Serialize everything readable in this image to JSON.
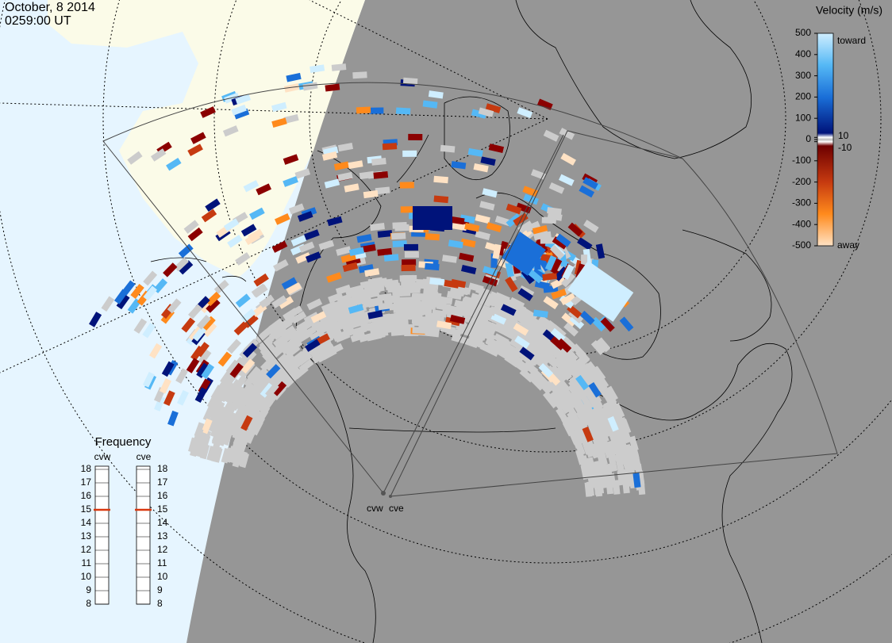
{
  "title": {
    "date": "October, 8 2014",
    "time": "0259:00 UT"
  },
  "colorbar": {
    "title": "Velocity (m/s)",
    "ticks": [
      500,
      400,
      300,
      200,
      100,
      10,
      0,
      -10,
      -100,
      -200,
      -300,
      -400,
      -500
    ],
    "toward": "toward",
    "away": "away"
  },
  "frequency": {
    "title": "Frequency",
    "ticks": [
      18,
      17,
      16,
      15,
      14,
      13,
      12,
      11,
      10,
      9,
      8
    ],
    "radars": [
      {
        "name": "cvw",
        "value": 15
      },
      {
        "name": "cve",
        "value": 15
      }
    ]
  },
  "radar_labels": [
    "cvw",
    "cve"
  ]
}
